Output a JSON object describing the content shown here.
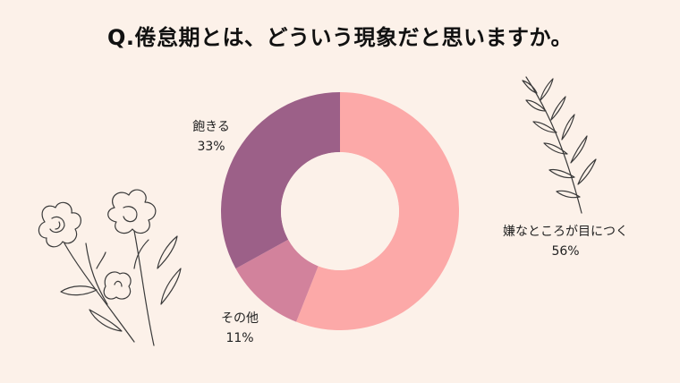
{
  "title": "Q.倦怠期とは、どういう現象だと思いますか。",
  "chart_data": {
    "type": "pie",
    "donut": true,
    "title": "Q.倦怠期とは、どういう現象だと思いますか。",
    "slices": [
      {
        "label": "嫌なところが目につく",
        "value": 56,
        "value_label": "56%",
        "color": "#fca9a8"
      },
      {
        "label": "その他",
        "value": 11,
        "value_label": "11%",
        "color": "#d2829c"
      },
      {
        "label": "飽きる",
        "value": 33,
        "value_label": "33%",
        "color": "#9c6088"
      }
    ],
    "start_angle": "12 o'clock",
    "direction": "clockwise"
  },
  "colors": {
    "background": "#fcf1e9",
    "hole": "#fcf1e9",
    "line_art": "#3a3a3a"
  }
}
